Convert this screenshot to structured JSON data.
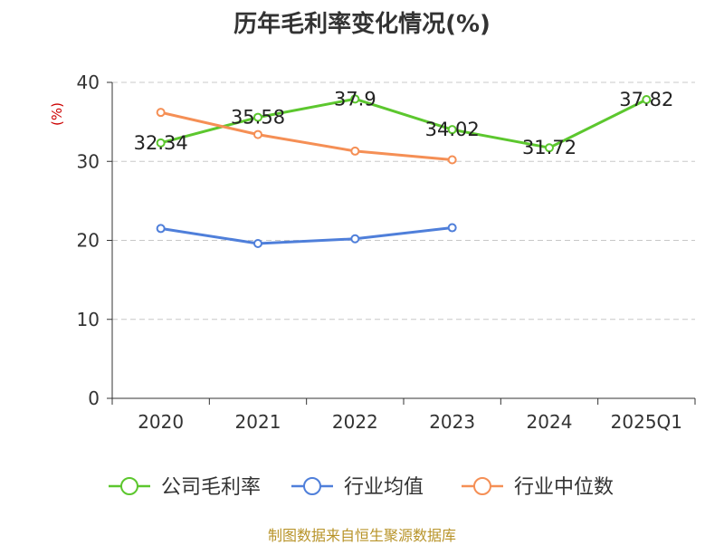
{
  "chart_data": {
    "type": "line",
    "title": "历年毛利率变化情况(%)",
    "ylabel": "(%)",
    "xlabel": "",
    "categories": [
      "2020",
      "2021",
      "2022",
      "2023",
      "2024",
      "2025Q1"
    ],
    "ylim": [
      0,
      40
    ],
    "yticks": [
      0,
      10,
      20,
      30,
      40
    ],
    "grid": true,
    "legend_position": "bottom",
    "series": [
      {
        "name": "公司毛利率",
        "values": [
          32.34,
          35.58,
          37.9,
          34.02,
          31.72,
          37.82
        ],
        "labels": [
          "32.34",
          "35.58",
          "37.9",
          "34.02",
          "31.72",
          "37.82"
        ],
        "color": "#5cc72e"
      },
      {
        "name": "行业均值",
        "values": [
          21.5,
          19.6,
          20.2,
          21.6,
          null,
          null
        ],
        "color": "#4f7fda"
      },
      {
        "name": "行业中位数",
        "values": [
          36.2,
          33.4,
          31.3,
          30.2,
          null,
          null
        ],
        "color": "#f58f55"
      }
    ]
  },
  "source_note": "制图数据来自恒生聚源数据库"
}
